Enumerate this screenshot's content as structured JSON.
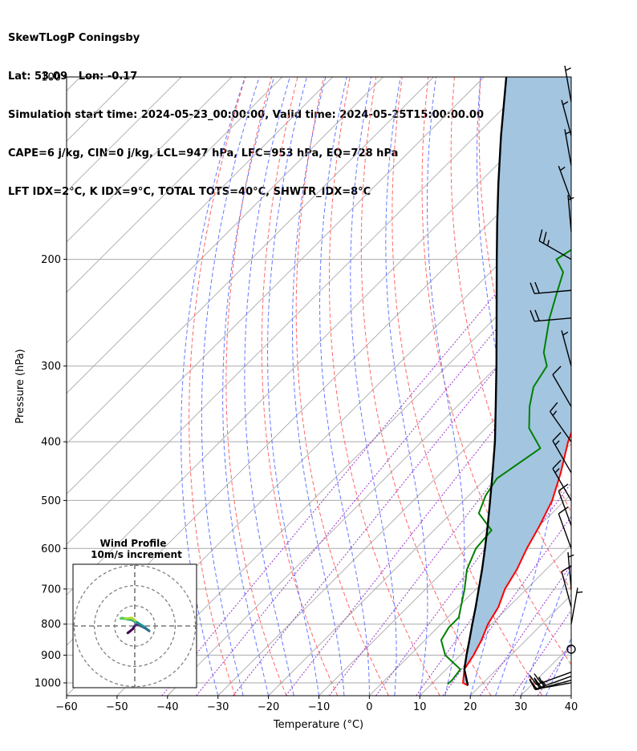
{
  "header": {
    "line1": "SkewTLogP Coningsby",
    "line2": "Lat: 53.09   Lon: -0.17",
    "line3": "Simulation start time: 2024-05-23_00:00:00, Valid time: 2024-05-25T15:00:00.00",
    "line4": "CAPE=6 j/kg, CIN=0 j/kg, LCL=947 hPa, LFC=953 hPa, EQ=728 hPa",
    "line5": "LFT IDX=2°C, K IDX=9°C, TOTAL TOTS=40°C, SHWTR_IDX=8°C"
  },
  "chart_data": {
    "type": "skewt",
    "xlabel": "Temperature (°C)",
    "ylabel": "Pressure (hPa)",
    "xlim": [
      -60,
      40
    ],
    "ylim": [
      1050,
      100
    ],
    "y_scale": "log",
    "xticks": [
      "−60",
      "−50",
      "−40",
      "−30",
      "−20",
      "−10",
      "0",
      "10",
      "20",
      "30",
      "40"
    ],
    "yticks": [
      "100",
      "200",
      "300",
      "400",
      "500",
      "600",
      "700",
      "800",
      "900",
      "1000"
    ],
    "ytick_values": [
      100,
      200,
      300,
      400,
      500,
      600,
      700,
      800,
      900,
      1000
    ],
    "grid": true,
    "colors": {
      "temperature": "#ff0000",
      "dewpoint": "#008000",
      "parcel": "#000000",
      "cape_fill": "#a3c5e0",
      "dry_adiabat": "#ff6666",
      "moist_adiabat": "#6677ff",
      "mixing_ratio": "#9933cc",
      "isotherm": "#999999"
    },
    "temperature_profile": [
      [
        1010,
        17.5
      ],
      [
        1000,
        16
      ],
      [
        950,
        13.6
      ],
      [
        900,
        12.6
      ],
      [
        850,
        11.2
      ],
      [
        800,
        9.3
      ],
      [
        750,
        8
      ],
      [
        700,
        5.7
      ],
      [
        650,
        4.2
      ],
      [
        600,
        2
      ],
      [
        550,
        0
      ],
      [
        500,
        -2.5
      ],
      [
        450,
        -6.3
      ],
      [
        400,
        -11
      ],
      [
        360,
        -14.5
      ],
      [
        340,
        -14.9
      ],
      [
        300,
        -15
      ],
      [
        270,
        -15.4
      ],
      [
        240,
        -14.4
      ],
      [
        210,
        -12.3
      ],
      [
        190,
        -10.3
      ],
      [
        170,
        -9
      ],
      [
        150,
        -6.4
      ],
      [
        130,
        -5.9
      ],
      [
        110,
        -5.1
      ],
      [
        100,
        -5
      ]
    ],
    "dewpoint_profile": [
      [
        1005,
        13.2
      ],
      [
        990,
        13.3
      ],
      [
        950,
        12.8
      ],
      [
        900,
        7
      ],
      [
        850,
        3.2
      ],
      [
        810,
        2.2
      ],
      [
        780,
        2.2
      ],
      [
        700,
        -2.3
      ],
      [
        650,
        -5.7
      ],
      [
        600,
        -8.1
      ],
      [
        560,
        -8.6
      ],
      [
        525,
        -14.5
      ],
      [
        490,
        -16.7
      ],
      [
        460,
        -17.8
      ],
      [
        410,
        -15.2
      ],
      [
        380,
        -21.4
      ],
      [
        350,
        -25.6
      ],
      [
        325,
        -28.7
      ],
      [
        300,
        -30.2
      ],
      [
        285,
        -33.5
      ],
      [
        250,
        -39.2
      ],
      [
        230,
        -42.3
      ],
      [
        210,
        -45.6
      ],
      [
        200,
        -49.5
      ],
      [
        190,
        -48
      ],
      [
        170,
        -47.5
      ],
      [
        150,
        -46.5
      ],
      [
        130,
        -48.3
      ],
      [
        110,
        -48.8
      ],
      [
        100,
        -49.2
      ]
    ],
    "parcel_profile": [
      [
        1010,
        17.5
      ],
      [
        950,
        13.6
      ],
      [
        900,
        11.2
      ],
      [
        850,
        8.8
      ],
      [
        800,
        6.2
      ],
      [
        750,
        3.5
      ],
      [
        700,
        0.5
      ],
      [
        650,
        -2.7
      ],
      [
        600,
        -6.3
      ],
      [
        550,
        -10.3
      ],
      [
        500,
        -14.8
      ],
      [
        450,
        -19.8
      ],
      [
        400,
        -25.5
      ],
      [
        350,
        -32.3
      ],
      [
        300,
        -40.2
      ],
      [
        250,
        -49.7
      ],
      [
        200,
        -61.3
      ],
      [
        175,
        -68.2
      ],
      [
        150,
        -76
      ],
      [
        125,
        -85
      ],
      [
        100,
        -95.6
      ]
    ],
    "wind_barbs": [
      {
        "p": 1000,
        "speed_kt": 30,
        "dir_deg": 260
      },
      {
        "p": 990,
        "speed_kt": 30,
        "dir_deg": 255
      },
      {
        "p": 975,
        "speed_kt": 25,
        "dir_deg": 250
      },
      {
        "p": 960,
        "speed_kt": 20,
        "dir_deg": 250
      },
      {
        "p": 880,
        "speed_kt": 0,
        "dir_deg": 0
      },
      {
        "p": 800,
        "speed_kt": 5,
        "dir_deg": 10
      },
      {
        "p": 750,
        "speed_kt": 10,
        "dir_deg": 345
      },
      {
        "p": 700,
        "speed_kt": 5,
        "dir_deg": 355
      },
      {
        "p": 600,
        "speed_kt": 10,
        "dir_deg": 340
      },
      {
        "p": 550,
        "speed_kt": 10,
        "dir_deg": 340
      },
      {
        "p": 500,
        "speed_kt": 15,
        "dir_deg": 330
      },
      {
        "p": 450,
        "speed_kt": 15,
        "dir_deg": 330
      },
      {
        "p": 400,
        "speed_kt": 15,
        "dir_deg": 325
      },
      {
        "p": 350,
        "speed_kt": 10,
        "dir_deg": 330
      },
      {
        "p": 300,
        "speed_kt": 5,
        "dir_deg": 345
      },
      {
        "p": 250,
        "speed_kt": 20,
        "dir_deg": 265
      },
      {
        "p": 225,
        "speed_kt": 20,
        "dir_deg": 265
      },
      {
        "p": 200,
        "speed_kt": 25,
        "dir_deg": 300
      },
      {
        "p": 180,
        "speed_kt": 5,
        "dir_deg": 355
      },
      {
        "p": 160,
        "speed_kt": 5,
        "dir_deg": 340
      },
      {
        "p": 140,
        "speed_kt": 5,
        "dir_deg": 350
      },
      {
        "p": 125,
        "speed_kt": 5,
        "dir_deg": 345
      },
      {
        "p": 110,
        "speed_kt": 5,
        "dir_deg": 350
      }
    ],
    "hodograph": {
      "title": "Wind Profile",
      "subtitle": "10m/s increment",
      "rings_ms": [
        10,
        20,
        30
      ],
      "trace": [
        [
          -3.5,
          -3.5
        ],
        [
          -2.2,
          -2.5
        ],
        [
          -1,
          -1.5
        ],
        [
          0,
          0
        ],
        [
          1.5,
          1
        ],
        [
          3,
          0
        ],
        [
          5,
          -1
        ],
        [
          6.5,
          -2
        ],
        [
          7.2,
          -2.5
        ],
        [
          4.5,
          -0.3
        ],
        [
          1.5,
          1.6
        ],
        [
          -1.5,
          3
        ],
        [
          -4,
          3.4
        ],
        [
          -6.5,
          4
        ],
        [
          -7,
          3.7
        ],
        [
          -4.5,
          3.7
        ],
        [
          -1.5,
          4
        ],
        [
          0.3,
          2.7
        ]
      ]
    }
  }
}
